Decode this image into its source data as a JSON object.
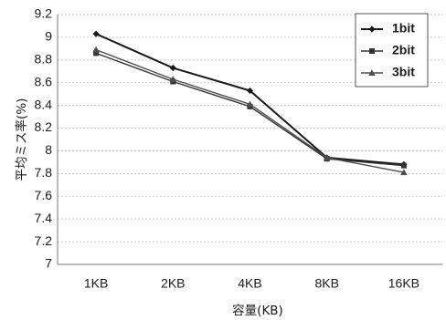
{
  "chart_data": {
    "type": "line",
    "categories": [
      "1KB",
      "2KB",
      "4KB",
      "8KB",
      "16KB"
    ],
    "xlabel": "容量(KB)",
    "ylabel": "平均ミス率(%)",
    "ylim": [
      7,
      9.2
    ],
    "ytick_step": 0.2,
    "yticks": [
      "7",
      "7.2",
      "7.4",
      "7.6",
      "7.8",
      "8",
      "8.2",
      "8.4",
      "8.6",
      "8.8",
      "9",
      "9.2"
    ],
    "grid": true,
    "legend_position": "top-right",
    "series": [
      {
        "name": "1bit",
        "marker": "diamond",
        "color": "#1a1a1a",
        "values": [
          9.03,
          8.73,
          8.53,
          7.94,
          7.88
        ]
      },
      {
        "name": "2bit",
        "marker": "square",
        "color": "#333333",
        "values": [
          8.86,
          8.61,
          8.39,
          7.93,
          7.87
        ]
      },
      {
        "name": "3bit",
        "marker": "triangle",
        "color": "#4d4d4d",
        "values": [
          8.89,
          8.63,
          8.41,
          7.94,
          7.81
        ]
      }
    ]
  }
}
